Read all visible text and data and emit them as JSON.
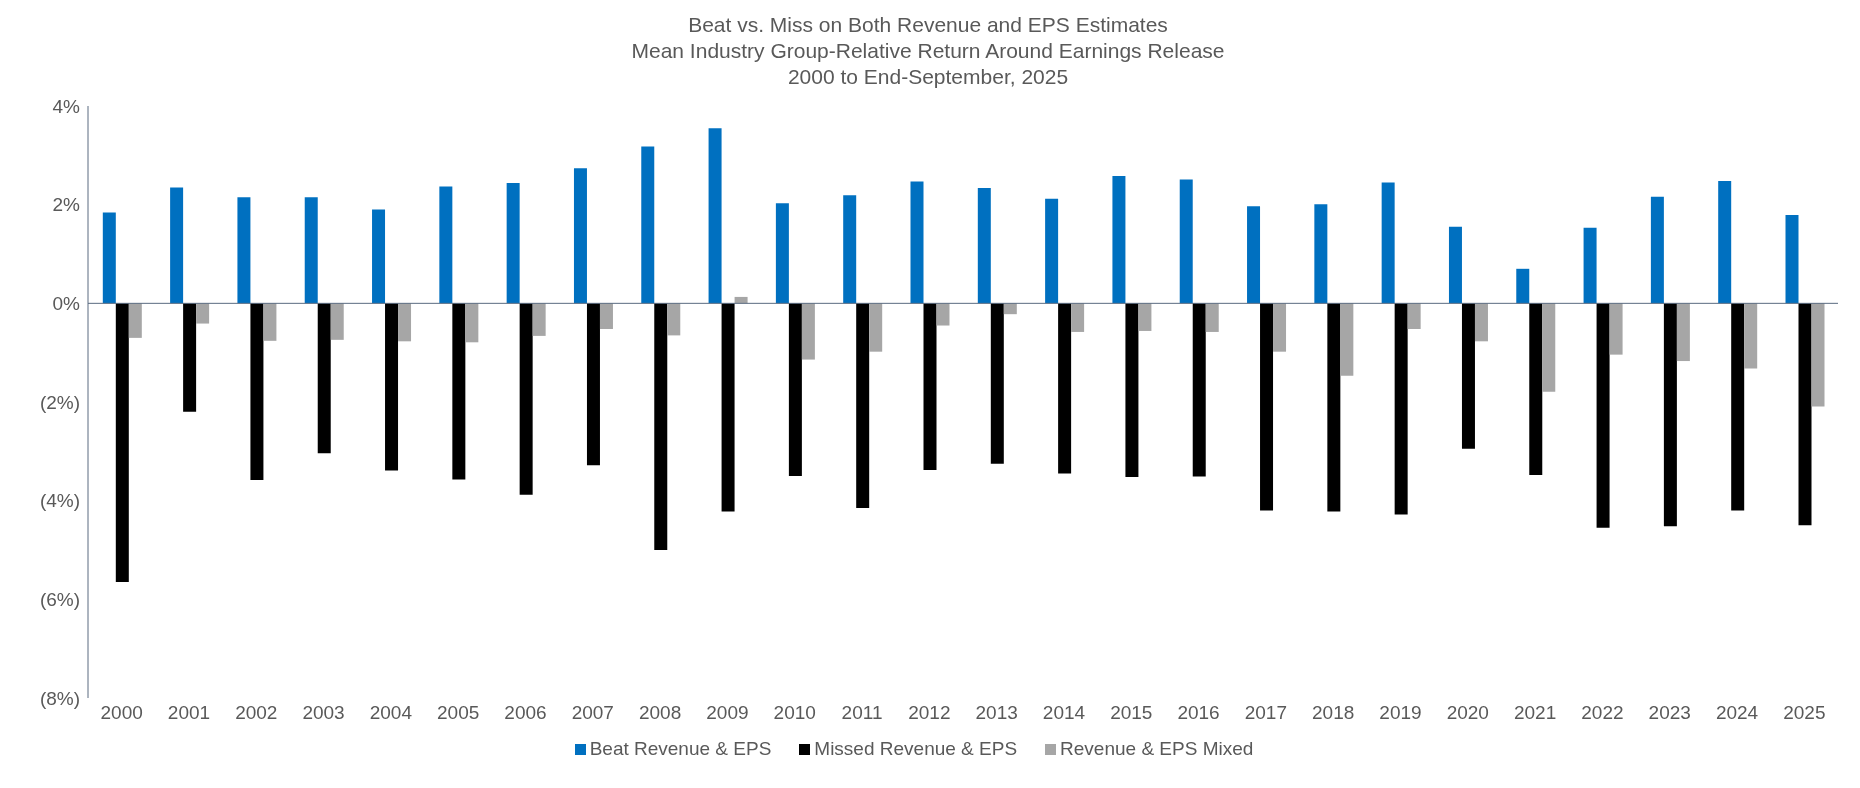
{
  "chart_data": {
    "type": "bar",
    "title": "Beat vs. Miss on Both Revenue and EPS Estimates\nMean Industry Group-Relative Return Around Earnings Release\n2000 to End-September, 2025",
    "categories": [
      "2000",
      "2001",
      "2002",
      "2003",
      "2004",
      "2005",
      "2006",
      "2007",
      "2008",
      "2009",
      "2010",
      "2011",
      "2012",
      "2013",
      "2014",
      "2015",
      "2016",
      "2017",
      "2018",
      "2019",
      "2020",
      "2021",
      "2022",
      "2023",
      "2024",
      "2025"
    ],
    "series": [
      {
        "name": "Beat Revenue & EPS",
        "color": "#0070c0",
        "values": [
          1.84,
          2.35,
          2.15,
          2.15,
          1.9,
          2.37,
          2.44,
          2.74,
          3.18,
          3.55,
          2.03,
          2.19,
          2.47,
          2.34,
          2.12,
          2.58,
          2.51,
          1.97,
          2.01,
          2.45,
          1.55,
          0.7,
          1.53,
          2.16,
          2.48,
          1.79
        ]
      },
      {
        "name": "Missed Revenue & EPS",
        "color": "#000000",
        "values": [
          -5.65,
          -2.2,
          -3.58,
          -3.04,
          -3.39,
          -3.57,
          -3.88,
          -3.28,
          -5.0,
          -4.22,
          -3.5,
          -4.15,
          -3.38,
          -3.25,
          -3.45,
          -3.52,
          -3.51,
          -4.2,
          -4.22,
          -4.28,
          -2.95,
          -3.48,
          -4.55,
          -4.52,
          -4.2,
          -4.5
        ]
      },
      {
        "name": "Revenue & EPS Mixed",
        "color": "#a6a6a6",
        "values": [
          -0.7,
          -0.41,
          -0.76,
          -0.74,
          -0.77,
          -0.79,
          -0.66,
          -0.52,
          -0.65,
          0.13,
          -1.14,
          -0.98,
          -0.45,
          -0.22,
          -0.58,
          -0.56,
          -0.58,
          -0.98,
          -1.47,
          -0.52,
          -0.77,
          -1.79,
          -1.04,
          -1.17,
          -1.32,
          -2.09
        ]
      }
    ],
    "ylim": [
      -8,
      4
    ],
    "yticks": [
      {
        "value": -8,
        "label": "(8%)"
      },
      {
        "value": -6,
        "label": "(6%)"
      },
      {
        "value": -4,
        "label": "(4%)"
      },
      {
        "value": -2,
        "label": "(2%)"
      },
      {
        "value": 0,
        "label": "0%"
      },
      {
        "value": 2,
        "label": "2%"
      },
      {
        "value": 4,
        "label": "4%"
      }
    ],
    "legend": "bottom"
  }
}
